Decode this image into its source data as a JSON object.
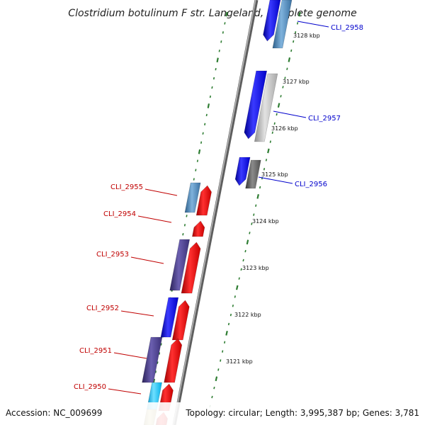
{
  "title": "Clostridium botulinum F str. Langeland, complete genome",
  "footer": {
    "accession": "Accession: NC_009699",
    "info": "Topology: circular; Length: 3,995,387 bp; Genes: 3,781"
  },
  "ticks": [
    {
      "label": "3128 kbp"
    },
    {
      "label": "3127 kbp"
    },
    {
      "label": "3126 kbp"
    },
    {
      "label": "3125 kbp"
    },
    {
      "label": "3124 kbp"
    },
    {
      "label": "3123 kbp"
    },
    {
      "label": "3122 kbp"
    },
    {
      "label": "3121 kbp"
    }
  ],
  "gene_labels": [
    {
      "name": "CLI_2958",
      "color": "#0000cc"
    },
    {
      "name": "CLI_2957",
      "color": "#0000cc"
    },
    {
      "name": "CLI_2956",
      "color": "#0000cc"
    },
    {
      "name": "CLI_2955",
      "color": "#c00000"
    },
    {
      "name": "CLI_2954",
      "color": "#c00000"
    },
    {
      "name": "CLI_2953",
      "color": "#c00000"
    },
    {
      "name": "CLI_2952",
      "color": "#c00000"
    },
    {
      "name": "CLI_2951",
      "color": "#c00000"
    },
    {
      "name": "CLI_2950",
      "color": "#c00000"
    }
  ],
  "colors": {
    "forward_cds": "#ff0000",
    "reverse_cds": "#0000ff",
    "backbone": "#888888",
    "tick": "#2e7d32",
    "cog_purple": "#4b3f8c",
    "cog_steel": "#4682b4",
    "cog_silver": "#c0c0c0",
    "cog_darkgray": "#606060",
    "cog_cyan": "#00bfff",
    "cog_olive": "#b5a86a"
  }
}
